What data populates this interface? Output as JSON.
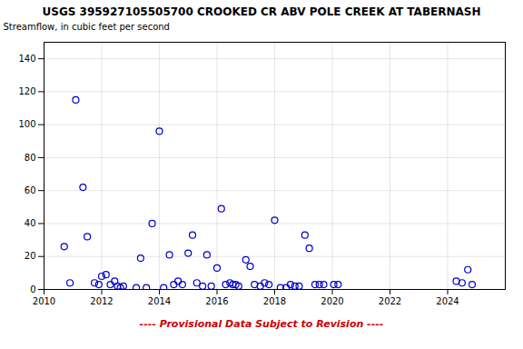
{
  "chart_data": {
    "type": "scatter",
    "title": "USGS 395927105505700 CROOKED CR ABV POLE CREEK AT TABERNASH",
    "ylabel": "Streamflow, in cubic feet per second",
    "x": [
      2010.7,
      2010.9,
      2011.1,
      2011.35,
      2011.5,
      2011.75,
      2011.9,
      2012.0,
      2012.15,
      2012.3,
      2012.45,
      2012.55,
      2012.65,
      2012.75,
      2013.2,
      2013.35,
      2013.55,
      2013.75,
      2014.0,
      2014.15,
      2014.35,
      2014.5,
      2014.65,
      2014.8,
      2015.0,
      2015.15,
      2015.3,
      2015.5,
      2015.65,
      2015.8,
      2016.0,
      2016.15,
      2016.3,
      2016.45,
      2016.55,
      2016.65,
      2016.75,
      2017.0,
      2017.15,
      2017.3,
      2017.5,
      2017.65,
      2017.8,
      2018.0,
      2018.2,
      2018.4,
      2018.55,
      2018.7,
      2018.85,
      2019.05,
      2019.2,
      2019.4,
      2019.55,
      2019.7,
      2020.05,
      2020.2,
      2024.3,
      2024.5,
      2024.7,
      2024.85
    ],
    "values": [
      26,
      4,
      115,
      62,
      32,
      4,
      3,
      8,
      9,
      3,
      5,
      2,
      1,
      2,
      1,
      19,
      1,
      40,
      96,
      1,
      21,
      3,
      5,
      3,
      22,
      33,
      4,
      2,
      21,
      2,
      13,
      49,
      3,
      4,
      3,
      3,
      2,
      18,
      14,
      3,
      2,
      4,
      3,
      42,
      1,
      1,
      3,
      2,
      2,
      33,
      25,
      3,
      3,
      3,
      3,
      3,
      5,
      4,
      12,
      3
    ],
    "xlim": [
      2010,
      2026
    ],
    "ylim": [
      0,
      150
    ],
    "xticks": [
      2010,
      2012,
      2014,
      2016,
      2018,
      2020,
      2022,
      2024
    ],
    "yticks": [
      0,
      20,
      40,
      60,
      80,
      100,
      120,
      140
    ],
    "color": "#0000cc",
    "marker": "circle",
    "grid": true,
    "annotations": [
      {
        "text": "---- Provisional Data Subject to Revision ----",
        "color": "#cc0000"
      }
    ]
  }
}
